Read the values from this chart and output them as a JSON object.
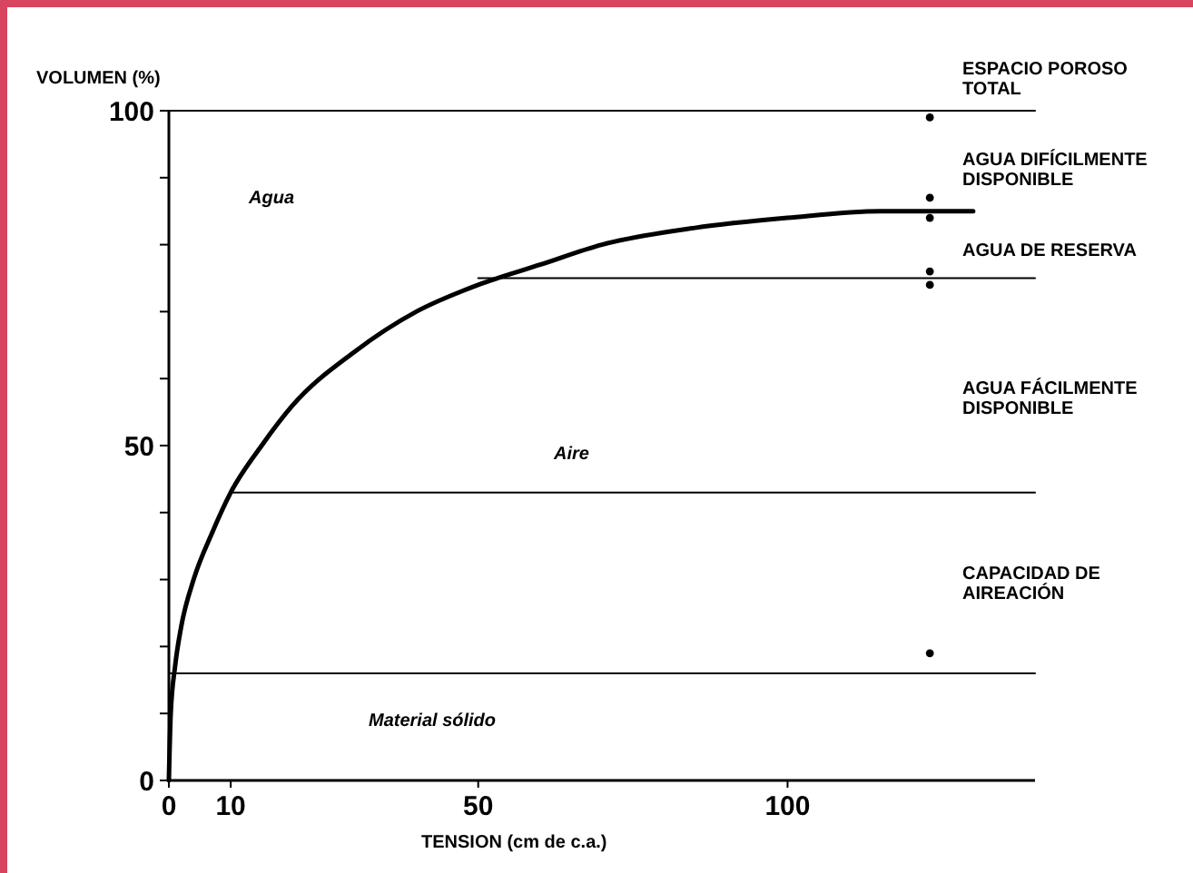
{
  "chart_data": {
    "type": "line",
    "xlabel": "TENSION (cm de c.a.)",
    "ylabel": "VOLUMEN (%)",
    "xlim": [
      0,
      140
    ],
    "ylim": [
      0,
      100
    ],
    "xticks": [
      0,
      10,
      50,
      100
    ],
    "yticks": [
      0,
      {
        "value": 10,
        "label": null
      },
      {
        "value": 20,
        "label": null
      },
      {
        "value": 30,
        "label": null
      },
      {
        "value": 40,
        "label": null
      },
      50,
      {
        "value": 60,
        "label": null
      },
      {
        "value": 70,
        "label": null
      },
      {
        "value": 80,
        "label": null
      },
      {
        "value": 90,
        "label": null
      },
      100
    ],
    "grid": false,
    "line_style": "solid",
    "series": [
      {
        "color": "#000000",
        "x": [
          0,
          0.3,
          1,
          2,
          4,
          7,
          10,
          15,
          20,
          30,
          40,
          50,
          60,
          70,
          85,
          100,
          115,
          130
        ],
        "values": [
          0,
          10,
          17,
          23,
          30,
          37,
          43,
          50,
          56,
          64,
          70,
          74,
          77,
          80,
          82.5,
          84,
          85,
          85
        ]
      },
      {
        "color": "#000000",
        "x": [
          0,
          140
        ],
        "values": [
          100,
          100
        ]
      },
      {
        "color": "#000000",
        "x": [
          50,
          140
        ],
        "values": [
          75,
          75
        ]
      },
      {
        "color": "#000000",
        "x": [
          10,
          140
        ],
        "values": [
          43,
          43
        ]
      },
      {
        "color": "#000000",
        "x": [
          0,
          140
        ],
        "values": [
          16,
          16
        ]
      },
      {
        "type": "scatter",
        "marker": "circle",
        "color": "#000000",
        "x": [
          123,
          123,
          123,
          123,
          123,
          123
        ],
        "values": [
          99,
          87,
          84,
          76,
          74,
          19
        ]
      }
    ],
    "annotations": [
      "Agua",
      "Aire",
      "Material sólido",
      "ESPACIO POROSO TOTAL",
      "AGUA DIFÍCILMENTE DISPONIBLE",
      "AGUA DE RESERVA",
      "AGUA FÁCILMENTE DISPONIBLE",
      "CAPACIDAD DE AIREACIÓN"
    ]
  }
}
